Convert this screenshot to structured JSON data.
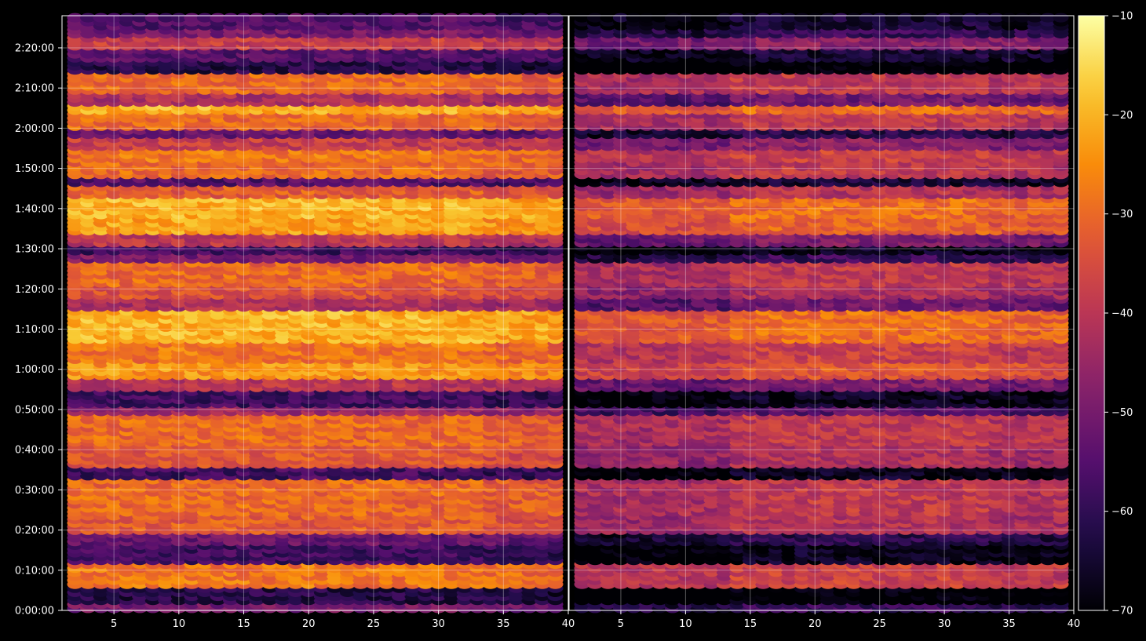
{
  "chart_data": {
    "type": "heatmap",
    "title": "",
    "xlabel": "",
    "ylabel": "",
    "panels": [
      {
        "name": "",
        "xlim": [
          1,
          40
        ],
        "xticks": [
          5,
          10,
          15,
          20,
          25,
          30,
          35,
          40
        ]
      },
      {
        "name": "",
        "xlim": [
          1,
          40
        ],
        "xticks": [
          5,
          10,
          15,
          20,
          25,
          30,
          35,
          40
        ]
      }
    ],
    "y_axis": {
      "ylim_seconds": [
        0,
        8880
      ],
      "ticks": [
        {
          "value": 0,
          "label": "0:00:00"
        },
        {
          "value": 600,
          "label": "0:10:00"
        },
        {
          "value": 1200,
          "label": "0:20:00"
        },
        {
          "value": 1800,
          "label": "0:30:00"
        },
        {
          "value": 2400,
          "label": "0:40:00"
        },
        {
          "value": 3000,
          "label": "0:50:00"
        },
        {
          "value": 3600,
          "label": "1:00:00"
        },
        {
          "value": 4200,
          "label": "1:10:00"
        },
        {
          "value": 4800,
          "label": "1:20:00"
        },
        {
          "value": 5400,
          "label": "1:30:00"
        },
        {
          "value": 6000,
          "label": "1:40:00"
        },
        {
          "value": 6600,
          "label": "1:50:00"
        },
        {
          "value": 7200,
          "label": "2:00:00"
        },
        {
          "value": 7800,
          "label": "2:10:00"
        },
        {
          "value": 8400,
          "label": "2:20:00"
        }
      ]
    },
    "colorbar": {
      "colormap": "inferno",
      "range": [
        -70,
        -10
      ],
      "ticks": [
        {
          "value": -10,
          "label": "−10"
        },
        {
          "value": -20,
          "label": "−20"
        },
        {
          "value": -30,
          "label": "−30"
        },
        {
          "value": -40,
          "label": "−40"
        },
        {
          "value": -50,
          "label": "−50"
        },
        {
          "value": -60,
          "label": "−60"
        },
        {
          "value": -70,
          "label": "−70"
        }
      ]
    },
    "grid": true,
    "bands": [
      {
        "t0": 0,
        "t1": 120,
        "level": -50
      },
      {
        "t0": 120,
        "t1": 360,
        "level": -62
      },
      {
        "t0": 360,
        "t1": 720,
        "level": -28
      },
      {
        "t0": 720,
        "t1": 1000,
        "level": -58
      },
      {
        "t0": 1000,
        "t1": 1170,
        "level": -52
      },
      {
        "t0": 1170,
        "t1": 1440,
        "level": -32
      },
      {
        "t0": 1440,
        "t1": 1980,
        "level": -30
      },
      {
        "t0": 1980,
        "t1": 2160,
        "level": -58
      },
      {
        "t0": 2160,
        "t1": 2490,
        "level": -33
      },
      {
        "t0": 2490,
        "t1": 2640,
        "level": -30
      },
      {
        "t0": 2640,
        "t1": 2940,
        "level": -30
      },
      {
        "t0": 2940,
        "t1": 3060,
        "level": -45
      },
      {
        "t0": 3060,
        "t1": 3300,
        "level": -58
      },
      {
        "t0": 3300,
        "t1": 3480,
        "level": -40
      },
      {
        "t0": 3480,
        "t1": 3720,
        "level": -24
      },
      {
        "t0": 3720,
        "t1": 4020,
        "level": -28
      },
      {
        "t0": 4020,
        "t1": 4500,
        "level": -20
      },
      {
        "t0": 4500,
        "t1": 4680,
        "level": -42
      },
      {
        "t0": 4680,
        "t1": 4860,
        "level": -34
      },
      {
        "t0": 4860,
        "t1": 5220,
        "level": -30
      },
      {
        "t0": 5220,
        "t1": 5340,
        "level": -50
      },
      {
        "t0": 5340,
        "t1": 5460,
        "level": -58
      },
      {
        "t0": 5460,
        "t1": 5640,
        "level": -40
      },
      {
        "t0": 5640,
        "t1": 5880,
        "level": -22
      },
      {
        "t0": 5880,
        "t1": 6180,
        "level": -20
      },
      {
        "t0": 6180,
        "t1": 6360,
        "level": -32
      },
      {
        "t0": 6360,
        "t1": 6480,
        "level": -55
      },
      {
        "t0": 6480,
        "t1": 6720,
        "level": -30
      },
      {
        "t0": 6720,
        "t1": 6900,
        "level": -28
      },
      {
        "t0": 6900,
        "t1": 7080,
        "level": -38
      },
      {
        "t0": 7080,
        "t1": 7200,
        "level": -52
      },
      {
        "t0": 7200,
        "t1": 7440,
        "level": -30
      },
      {
        "t0": 7440,
        "t1": 7560,
        "level": -20
      },
      {
        "t0": 7560,
        "t1": 7740,
        "level": -42
      },
      {
        "t0": 7740,
        "t1": 8040,
        "level": -30
      },
      {
        "t0": 8040,
        "t1": 8220,
        "level": -62
      },
      {
        "t0": 8220,
        "t1": 8400,
        "level": -55
      },
      {
        "t0": 8400,
        "t1": 8580,
        "level": -38
      },
      {
        "t0": 8580,
        "t1": 8700,
        "level": -50
      },
      {
        "t0": 8700,
        "t1": 8880,
        "level": -55
      }
    ],
    "panel2_offset": -9
  }
}
